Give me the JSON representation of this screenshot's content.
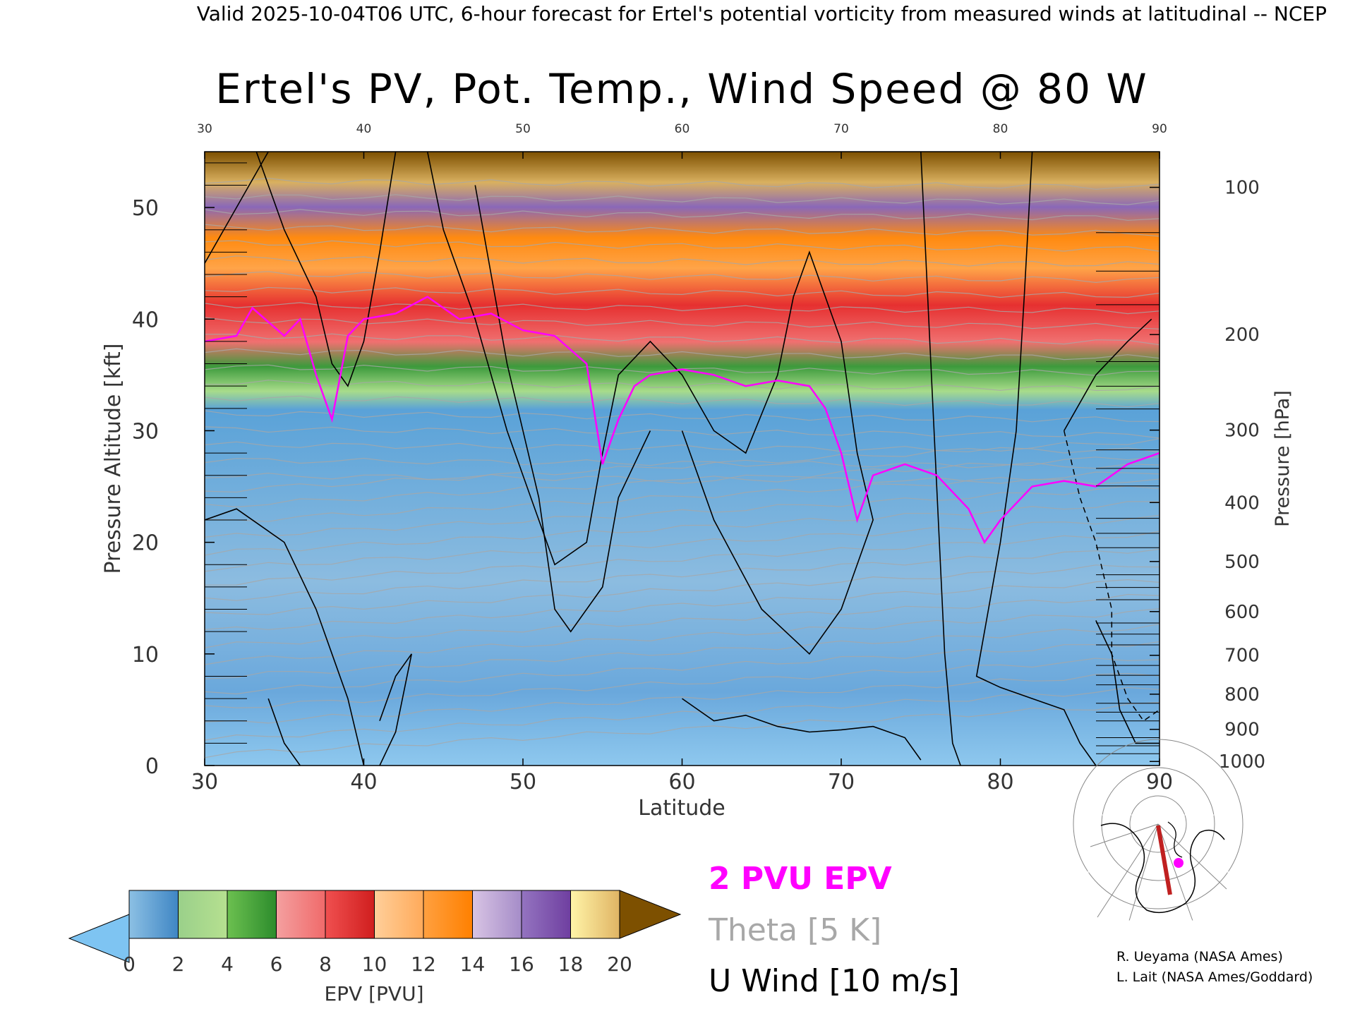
{
  "header": {
    "valid_line": "Valid 2025-10-04T06 UTC, 6-hour forecast for Ertel's potential vorticity from measured winds at latitudinal -- NCEP"
  },
  "chart_data": {
    "type": "heatmap",
    "title": "Ertel's PV, Pot. Temp., Wind Speed @ 80 W",
    "xlabel": "Latitude",
    "ylabel_left": "Pressure Altitude [kft]",
    "ylabel_right": "Pressure [hPa]",
    "xlim": [
      30,
      90
    ],
    "ylim_kft": [
      0,
      55
    ],
    "x_ticks": [
      30,
      40,
      50,
      60,
      70,
      80,
      90
    ],
    "x_tick_labels": [
      "30",
      "40",
      "50",
      "60",
      "70",
      "80",
      "90"
    ],
    "top_x_tick_labels": [
      "30",
      "40",
      "50",
      "60",
      "70",
      "80",
      "90"
    ],
    "left_ticks": [
      0,
      10,
      20,
      30,
      40,
      50
    ],
    "left_tick_labels": [
      "0",
      "10",
      "20",
      "30",
      "40",
      "50"
    ],
    "right_pressure_ticks": [
      {
        "hpa": 100,
        "label": "100"
      },
      {
        "hpa": 200,
        "label": "200"
      },
      {
        "hpa": 300,
        "label": "300"
      },
      {
        "hpa": 400,
        "label": "400"
      },
      {
        "hpa": 500,
        "label": "500"
      },
      {
        "hpa": 600,
        "label": "600"
      },
      {
        "hpa": 700,
        "label": "700"
      },
      {
        "hpa": 800,
        "label": "800"
      },
      {
        "hpa": 900,
        "label": "900"
      },
      {
        "hpa": 1000,
        "label": "1000"
      }
    ],
    "tropopause_2pvu_kft": [
      [
        30,
        38
      ],
      [
        32,
        38.5
      ],
      [
        33,
        41
      ],
      [
        35,
        38.5
      ],
      [
        36,
        40
      ],
      [
        37,
        35
      ],
      [
        38,
        31
      ],
      [
        39,
        38.5
      ],
      [
        40,
        40
      ],
      [
        42,
        40.5
      ],
      [
        44,
        42
      ],
      [
        46,
        40
      ],
      [
        48,
        40.5
      ],
      [
        50,
        39
      ],
      [
        52,
        38.5
      ],
      [
        54,
        36
      ],
      [
        55,
        27
      ],
      [
        56,
        31
      ],
      [
        57,
        34
      ],
      [
        58,
        35
      ],
      [
        60,
        35.5
      ],
      [
        62,
        35
      ],
      [
        64,
        34
      ],
      [
        66,
        34.5
      ],
      [
        68,
        34
      ],
      [
        69,
        32
      ],
      [
        70,
        28
      ],
      [
        71,
        22
      ],
      [
        72,
        26
      ],
      [
        74,
        27
      ],
      [
        76,
        26
      ],
      [
        78,
        23
      ],
      [
        79,
        20
      ],
      [
        80,
        22
      ],
      [
        82,
        25
      ],
      [
        84,
        25.5
      ],
      [
        86,
        25
      ],
      [
        88,
        27
      ],
      [
        90,
        28
      ]
    ],
    "wind_contour_levels_ms": [
      0,
      10,
      30
    ],
    "theta_interval_K": 5,
    "colorbar": {
      "label": "EPV [PVU]",
      "min": 0,
      "max": 20,
      "ticks": [
        "0",
        "2",
        "4",
        "6",
        "8",
        "10",
        "12",
        "14",
        "16",
        "18",
        "20"
      ],
      "under_color": "#7ec4f2",
      "over_color": "#7d5000",
      "bins": [
        {
          "from": 0,
          "to": 2,
          "stops": [
            "#8cc0e4",
            "#3f86c4"
          ]
        },
        {
          "from": 2,
          "to": 4,
          "stops": [
            "#9ad08a",
            "#b6e090"
          ]
        },
        {
          "from": 4,
          "to": 6,
          "stops": [
            "#6cc050",
            "#2c8c2c"
          ]
        },
        {
          "from": 6,
          "to": 8,
          "stops": [
            "#f4a0a0",
            "#f06a6a"
          ]
        },
        {
          "from": 8,
          "to": 10,
          "stops": [
            "#f05050",
            "#d01e1e"
          ]
        },
        {
          "from": 10,
          "to": 12,
          "stops": [
            "#ffcf9a",
            "#ffaa5a"
          ]
        },
        {
          "from": 12,
          "to": 14,
          "stops": [
            "#ffa040",
            "#ff8000"
          ]
        },
        {
          "from": 14,
          "to": 16,
          "stops": [
            "#d8c4e4",
            "#a58cc8"
          ]
        },
        {
          "from": 16,
          "to": 18,
          "stops": [
            "#9474c0",
            "#6f3fa0"
          ]
        },
        {
          "from": 18,
          "to": 20,
          "stops": [
            "#fff4a8",
            "#e0b464"
          ]
        }
      ]
    }
  },
  "legend": {
    "pv_line": "2 PVU EPV",
    "theta_line": "Theta [5 K]",
    "wind_line": "U Wind [10 m/s]",
    "pv_color": "#ff00ff",
    "theta_color": "#a8a8a8",
    "wind_color": "#000000"
  },
  "credits": {
    "line1": "R. Ueyama (NASA Ames)",
    "line2": "L. Lait (NASA Ames/Goddard)"
  },
  "map_inset": {
    "track_color": "#c02020",
    "marker_color": "#ff00ff"
  }
}
